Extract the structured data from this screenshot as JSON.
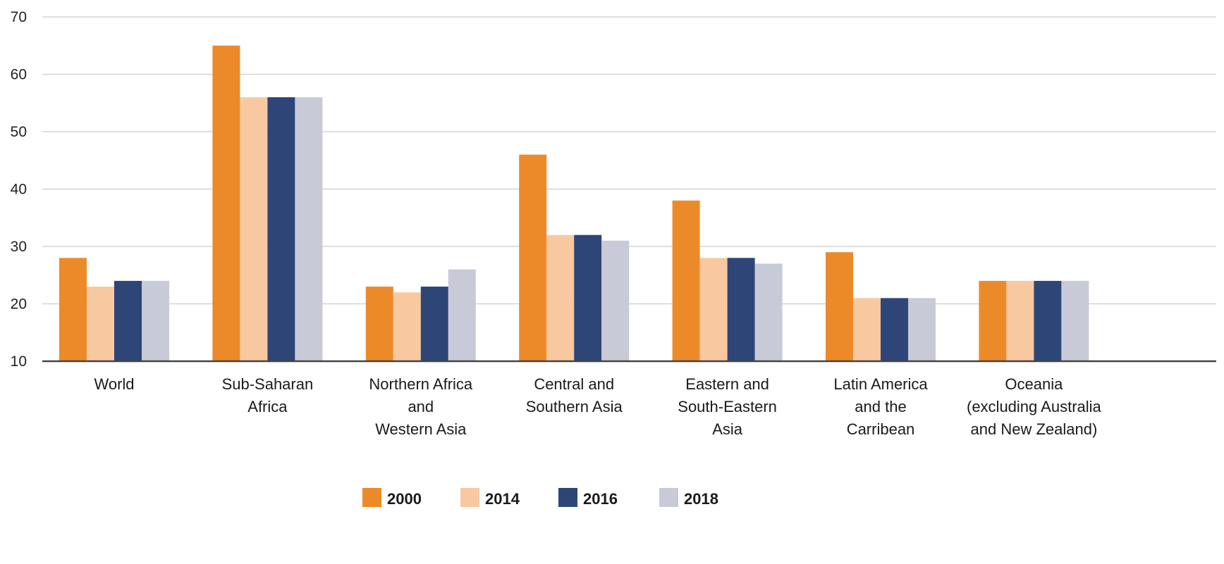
{
  "chart_data": {
    "type": "bar",
    "title": "",
    "xlabel": "",
    "ylabel": "",
    "ylim": [
      10,
      70
    ],
    "yticks": [
      10,
      20,
      30,
      40,
      50,
      60,
      70
    ],
    "grid": true,
    "legend_position": "bottom-center",
    "categories": [
      [
        "World"
      ],
      [
        "Sub-Saharan",
        "Africa"
      ],
      [
        "Northern Africa",
        "and",
        "Western Asia"
      ],
      [
        "Central and",
        "Southern Asia"
      ],
      [
        "Eastern and",
        "South-Eastern",
        "Asia"
      ],
      [
        "Latin America",
        "and the",
        "Carribean"
      ],
      [
        "Oceania",
        "(excluding Australia",
        "and New Zealand)"
      ]
    ],
    "series": [
      {
        "name": "2000",
        "color": "#ec8a2a",
        "values": [
          28,
          65,
          23,
          46,
          38,
          29,
          24
        ]
      },
      {
        "name": "2014",
        "color": "#f8c9a0",
        "values": [
          23,
          56,
          22,
          32,
          28,
          21,
          24
        ]
      },
      {
        "name": "2016",
        "color": "#2e4577",
        "values": [
          24,
          56,
          23,
          32,
          28,
          21,
          24
        ]
      },
      {
        "name": "2018",
        "color": "#c9cad8",
        "values": [
          24,
          56,
          26,
          31,
          27,
          21,
          24
        ]
      }
    ],
    "colors": {
      "gridline": "#d3d3d3",
      "axis": "#444444"
    }
  }
}
